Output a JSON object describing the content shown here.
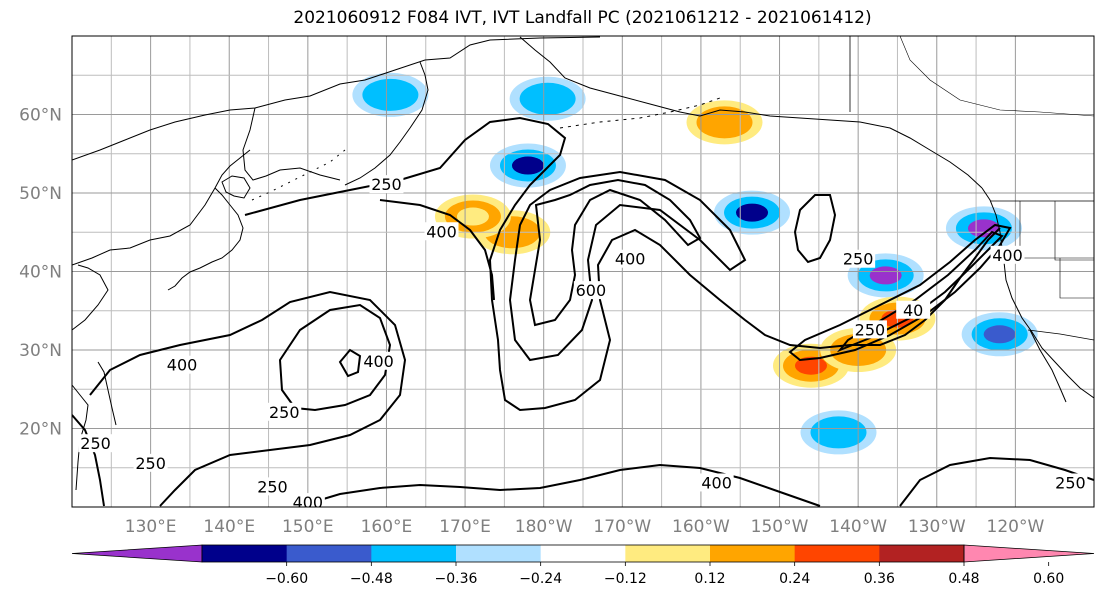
{
  "title": "2021060912 F084 IVT, IVT Landfall PC (2021061212 - 2021061412)",
  "map": {
    "projection": "PlateCarree",
    "lon_range": [
      120,
      250
    ],
    "lat_range": [
      10,
      70
    ],
    "grid": true,
    "coastlines": true,
    "lat_ticks": [
      {
        "lat": 60,
        "label": "60°N"
      },
      {
        "lat": 50,
        "label": "50°N"
      },
      {
        "lat": 40,
        "label": "40°N"
      },
      {
        "lat": 30,
        "label": "30°N"
      },
      {
        "lat": 20,
        "label": "20°N"
      }
    ],
    "lon_ticks": [
      {
        "lon": 130,
        "label": "130°E"
      },
      {
        "lon": 140,
        "label": "140°E"
      },
      {
        "lon": 150,
        "label": "150°E"
      },
      {
        "lon": 160,
        "label": "160°E"
      },
      {
        "lon": 170,
        "label": "170°E"
      },
      {
        "lon": 180,
        "label": "180°W"
      },
      {
        "lon": 190,
        "label": "170°W"
      },
      {
        "lon": 200,
        "label": "160°W"
      },
      {
        "lon": 210,
        "label": "150°W"
      },
      {
        "lon": 220,
        "label": "140°W"
      },
      {
        "lon": 230,
        "label": "130°W"
      },
      {
        "lon": 240,
        "label": "120°W"
      }
    ],
    "ivt_contour_levels": [
      250,
      400,
      600
    ],
    "contour_labels": [
      {
        "text": "250",
        "lon": 160,
        "lat": 51
      },
      {
        "text": "400",
        "lon": 167,
        "lat": 45
      },
      {
        "text": "250",
        "lon": 220,
        "lat": 41.5
      },
      {
        "text": "600",
        "lon": 186,
        "lat": 37.5
      },
      {
        "text": "400",
        "lon": 191,
        "lat": 41.5
      },
      {
        "text": "250",
        "lon": 221.5,
        "lat": 32.5
      },
      {
        "text": "40",
        "lon": 227,
        "lat": 35
      },
      {
        "text": "400",
        "lon": 134,
        "lat": 28
      },
      {
        "text": "400",
        "lon": 159,
        "lat": 28.5
      },
      {
        "text": "250",
        "lon": 147,
        "lat": 22
      },
      {
        "text": "250",
        "lon": 123,
        "lat": 18
      },
      {
        "text": "250",
        "lon": 130,
        "lat": 15.5
      },
      {
        "text": "250",
        "lon": 145.5,
        "lat": 12.5
      },
      {
        "text": "400",
        "lon": 150,
        "lat": 10.5
      },
      {
        "text": "400",
        "lon": 202,
        "lat": 13
      },
      {
        "text": "250",
        "lon": 247,
        "lat": 13
      },
      {
        "text": "400",
        "lon": 239,
        "lat": 42
      }
    ],
    "pc_patches": [
      {
        "lon": 236,
        "lat": 45.5,
        "value": -0.6
      },
      {
        "lon": 223.5,
        "lat": 39.5,
        "value": -0.6
      },
      {
        "lon": 206.5,
        "lat": 47.5,
        "value": -0.48
      },
      {
        "lon": 178,
        "lat": 53.5,
        "value": -0.48
      },
      {
        "lon": 238,
        "lat": 32,
        "value": -0.36
      },
      {
        "lon": 217.5,
        "lat": 19.5,
        "value": -0.24
      },
      {
        "lon": 180.5,
        "lat": 62,
        "value": -0.24
      },
      {
        "lon": 160.5,
        "lat": 62.5,
        "value": -0.24
      },
      {
        "lon": 214,
        "lat": 28,
        "value": 0.48
      },
      {
        "lon": 220,
        "lat": 30,
        "value": 0.36
      },
      {
        "lon": 225,
        "lat": 34,
        "value": 0.48
      },
      {
        "lon": 203,
        "lat": 59,
        "value": 0.36
      },
      {
        "lon": 176,
        "lat": 45,
        "value": 0.36
      },
      {
        "lon": 171,
        "lat": 47,
        "value": 0.24
      }
    ]
  },
  "colorbar": {
    "colors": [
      "#9932cc",
      "#00008b",
      "#3a5bcd",
      "#00bfff",
      "#b0e0ff",
      "#ffffff",
      "#ffeb80",
      "#ffa500",
      "#ff4500",
      "#b22222",
      "#ff87b0"
    ],
    "ticks": [
      -0.6,
      -0.48,
      -0.36,
      -0.24,
      -0.12,
      0.12,
      0.24,
      0.36,
      0.48,
      0.6
    ],
    "tick_labels": [
      "−0.60",
      "−0.48",
      "−0.36",
      "−0.24",
      "−0.12",
      "0.12",
      "0.24",
      "0.36",
      "0.48",
      "0.60"
    ],
    "extend": "both"
  }
}
